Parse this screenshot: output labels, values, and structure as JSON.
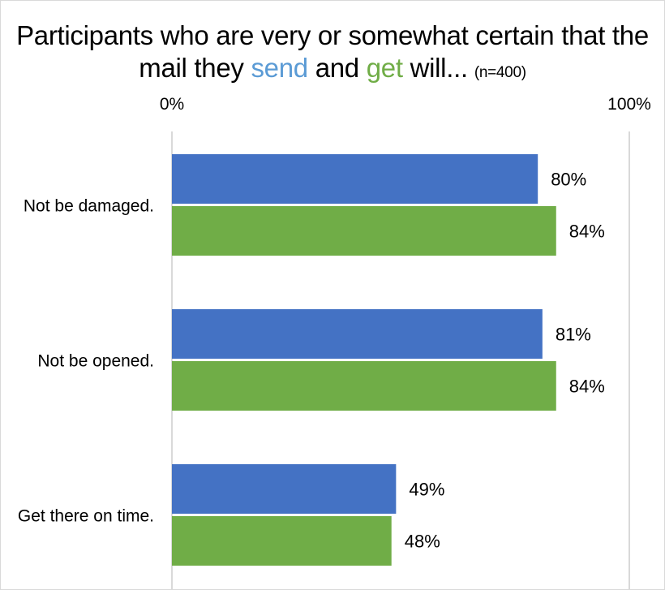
{
  "title": {
    "line1": "Participants who are very or somewhat certain that the",
    "line2_pre": "mail they ",
    "send_word": "send",
    "mid": " and ",
    "get_word": "get",
    "line2_post": " will...",
    "n_label": "(n=400)"
  },
  "colors": {
    "send_title": "#5b9bd5",
    "get_title": "#70ad47",
    "send_bar": "#4472c4",
    "get_bar": "#70ad47",
    "gridline": "#d9d9d9"
  },
  "chart_data": {
    "type": "bar",
    "orientation": "horizontal",
    "categories": [
      "Not be damaged.",
      "Not be opened.",
      "Get there on time."
    ],
    "series": [
      {
        "values": [
          80,
          81,
          49
        ],
        "labels": [
          "80%",
          "81%",
          "49%"
        ]
      },
      {
        "values": [
          84,
          84,
          48
        ],
        "labels": [
          "84%",
          "84%",
          "48%"
        ]
      }
    ],
    "xlim": [
      0,
      100
    ],
    "tick_labels": [
      "0%",
      "100%"
    ],
    "axis_position": "top",
    "grid": true,
    "legend": "none"
  }
}
